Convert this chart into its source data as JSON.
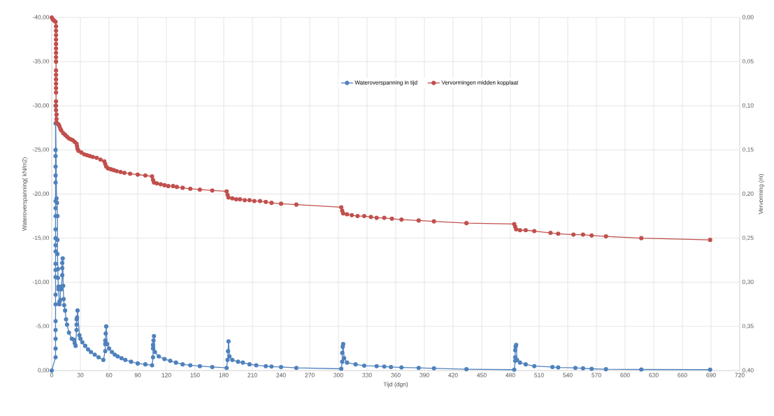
{
  "chart_data": {
    "type": "line",
    "xlabel": "Tijd (dgn)",
    "ylabel": "Wateroverspanning( kN/m2)",
    "y2label": "Vervorming (m)",
    "xlim": [
      0,
      720
    ],
    "xticks": [
      0,
      30,
      60,
      90,
      120,
      150,
      180,
      210,
      240,
      270,
      300,
      330,
      360,
      390,
      420,
      450,
      480,
      510,
      540,
      570,
      600,
      630,
      660,
      690,
      720
    ],
    "ylim": [
      0,
      -40
    ],
    "yticks": [
      {
        "value": 0,
        "label": "0,00"
      },
      {
        "value": -5,
        "label": "-5,00"
      },
      {
        "value": -10,
        "label": "-10,00"
      },
      {
        "value": -15,
        "label": "-15,00"
      },
      {
        "value": -20,
        "label": "-20,00"
      },
      {
        "value": -25,
        "label": "-25,00"
      },
      {
        "value": -30,
        "label": "-30,00"
      },
      {
        "value": -35,
        "label": "-35,00"
      },
      {
        "value": -40,
        "label": "-40,00"
      }
    ],
    "y2lim": [
      0.4,
      0
    ],
    "y2ticks": [
      {
        "value": 0.4,
        "label": "0,40"
      },
      {
        "value": 0.35,
        "label": "0,35"
      },
      {
        "value": 0.3,
        "label": "0,30"
      },
      {
        "value": 0.25,
        "label": "0,25"
      },
      {
        "value": 0.2,
        "label": "0,20"
      },
      {
        "value": 0.15,
        "label": "0,15"
      },
      {
        "value": 0.1,
        "label": "0,10"
      },
      {
        "value": 0.05,
        "label": "0,05"
      },
      {
        "value": 0,
        "label": "0,00"
      }
    ],
    "grid": true,
    "legend": "top",
    "marker": "circle",
    "line_style": "solid",
    "series": [
      {
        "name": "Wateroverspanning in tijd",
        "color": "#4f81bd",
        "x": [
          0,
          4,
          4,
          4,
          4,
          4,
          4,
          4,
          4,
          4,
          4,
          4,
          4,
          4,
          4,
          4,
          4,
          4,
          4,
          4,
          4,
          4,
          4,
          4,
          4,
          5,
          5.5,
          6,
          6,
          6,
          6.5,
          6.5,
          7,
          7,
          8,
          8,
          9,
          9,
          10,
          11,
          11,
          11,
          11.5,
          12,
          12.5,
          13,
          14,
          15,
          16,
          18,
          21,
          23,
          24,
          25,
          26,
          26,
          26,
          26.5,
          27,
          29,
          30,
          32,
          35,
          38,
          41,
          45,
          49,
          54,
          56,
          56,
          56,
          56.5,
          57,
          58,
          60,
          63,
          66,
          69,
          73,
          77,
          83,
          90,
          98,
          105,
          106,
          106,
          106,
          106.5,
          107,
          108,
          112,
          118,
          124,
          130,
          137,
          145,
          155,
          168,
          183,
          184,
          184.5,
          185,
          186,
          189,
          195,
          200,
          207,
          214,
          224,
          230,
          240,
          256,
          303,
          304,
          304,
          304.5,
          305,
          306,
          309,
          318,
          327,
          340,
          348,
          355,
          366,
          384,
          400,
          434,
          484,
          485,
          485,
          485,
          485.5,
          486,
          487,
          490,
          496,
          505,
          524,
          530,
          548,
          556,
          565,
          580,
          617,
          689
        ],
        "values": [
          0,
          -1.5,
          -2.5,
          -3.6,
          -4.6,
          -5.6,
          -7.5,
          -8.6,
          -10.6,
          -11.4,
          -12.1,
          -13.5,
          -14.2,
          -15,
          -16,
          -17.5,
          -18.4,
          -19.2,
          -21.3,
          -22.1,
          -23.1,
          -24.3,
          -25,
          -28,
          -30,
          -19.5,
          -19,
          -17.5,
          -14.8,
          -13.2,
          -11.5,
          -10.5,
          -9.5,
          -9.2,
          -7.8,
          -7.5,
          -8,
          -9.5,
          -9.2,
          -10.8,
          -11.6,
          -12.2,
          -12.7,
          -9.6,
          -8.1,
          -7.4,
          -6.8,
          -5.8,
          -5.2,
          -4.3,
          -3.6,
          -3.5,
          -3.1,
          -2.8,
          -4.6,
          -5.2,
          -5.8,
          -6.0,
          -6.8,
          -4.0,
          -3.6,
          -3.2,
          -2.8,
          -2.4,
          -2.1,
          -1.8,
          -1.5,
          -1.2,
          -2.2,
          -3.0,
          -3.4,
          -4.2,
          -5.0,
          -3.0,
          -2.5,
          -2.1,
          -1.8,
          -1.6,
          -1.4,
          -1.2,
          -1.0,
          -0.8,
          -0.7,
          -0.6,
          -1.5,
          -2.5,
          -2.9,
          -3.4,
          -3.9,
          -2.1,
          -1.6,
          -1.3,
          -1.1,
          -0.9,
          -0.7,
          -0.6,
          -0.5,
          -0.4,
          -0.3,
          -1.2,
          -2.2,
          -3.3,
          -1.6,
          -1.2,
          -1.0,
          -0.9,
          -0.7,
          -0.6,
          -0.5,
          -0.45,
          -0.4,
          -0.3,
          -0.2,
          -1.0,
          -2.0,
          -2.7,
          -3.0,
          -1.4,
          -0.9,
          -0.7,
          -0.55,
          -0.5,
          -0.45,
          -0.4,
          -0.35,
          -0.3,
          -0.25,
          -0.15,
          -0.1,
          -1.1,
          -1.5,
          -2.3,
          -2.7,
          -2.9,
          -1.2,
          -0.9,
          -0.7,
          -0.5,
          -0.4,
          -0.35,
          -0.3,
          -0.25,
          -0.2,
          -0.15,
          -0.12,
          -0.1
        ]
      },
      {
        "name": "Vervormingen midden kopplaat",
        "color": "#c0504d",
        "axis": "y2",
        "x": [
          0,
          1,
          2,
          3,
          4,
          4.5,
          4.5,
          4.5,
          4.5,
          4.5,
          4.5,
          4.5,
          4.5,
          4.5,
          4.5,
          4.5,
          4.5,
          4.5,
          4.5,
          4.5,
          4.5,
          4.5,
          4.5,
          5,
          5,
          5,
          7,
          8,
          9,
          10,
          12,
          14,
          16,
          18,
          20,
          22,
          24,
          26,
          26.5,
          27,
          28,
          31,
          34,
          37,
          40,
          43,
          47,
          51,
          55,
          56,
          57,
          59,
          62,
          65,
          68,
          72,
          76,
          82,
          90,
          98,
          105,
          106,
          107,
          110,
          114,
          118,
          122,
          127,
          131,
          137,
          145,
          155,
          168,
          183,
          184,
          185,
          189,
          193,
          197,
          202,
          207,
          212,
          218,
          224,
          230,
          240,
          256,
          303,
          304,
          305,
          309,
          314,
          320,
          327,
          334,
          340,
          348,
          356,
          366,
          384,
          400,
          434,
          484,
          485,
          486,
          490,
          496,
          505,
          522,
          530,
          546,
          556,
          565,
          580,
          617,
          689
        ],
        "values": [
          0,
          0.002,
          0.003,
          0.004,
          0.005,
          0.01,
          0.015,
          0.02,
          0.025,
          0.03,
          0.035,
          0.04,
          0.045,
          0.05,
          0.06,
          0.065,
          0.07,
          0.075,
          0.08,
          0.085,
          0.095,
          0.1,
          0.105,
          0.11,
          0.115,
          0.119,
          0.121,
          0.123,
          0.126,
          0.128,
          0.131,
          0.133,
          0.135,
          0.137,
          0.138,
          0.139,
          0.141,
          0.143,
          0.146,
          0.149,
          0.151,
          0.153,
          0.155,
          0.156,
          0.157,
          0.158,
          0.159,
          0.161,
          0.163,
          0.166,
          0.169,
          0.171,
          0.172,
          0.173,
          0.174,
          0.175,
          0.176,
          0.177,
          0.178,
          0.179,
          0.18,
          0.184,
          0.187,
          0.188,
          0.189,
          0.19,
          0.191,
          0.191,
          0.192,
          0.193,
          0.194,
          0.195,
          0.196,
          0.197,
          0.201,
          0.204,
          0.205,
          0.206,
          0.206,
          0.207,
          0.207,
          0.208,
          0.208,
          0.209,
          0.21,
          0.211,
          0.212,
          0.215,
          0.219,
          0.222,
          0.223,
          0.224,
          0.225,
          0.225,
          0.226,
          0.227,
          0.227,
          0.228,
          0.229,
          0.23,
          0.231,
          0.233,
          0.234,
          0.237,
          0.24,
          0.241,
          0.241,
          0.242,
          0.244,
          0.245,
          0.246,
          0.246,
          0.247,
          0.248,
          0.25,
          0.252
        ]
      }
    ]
  }
}
